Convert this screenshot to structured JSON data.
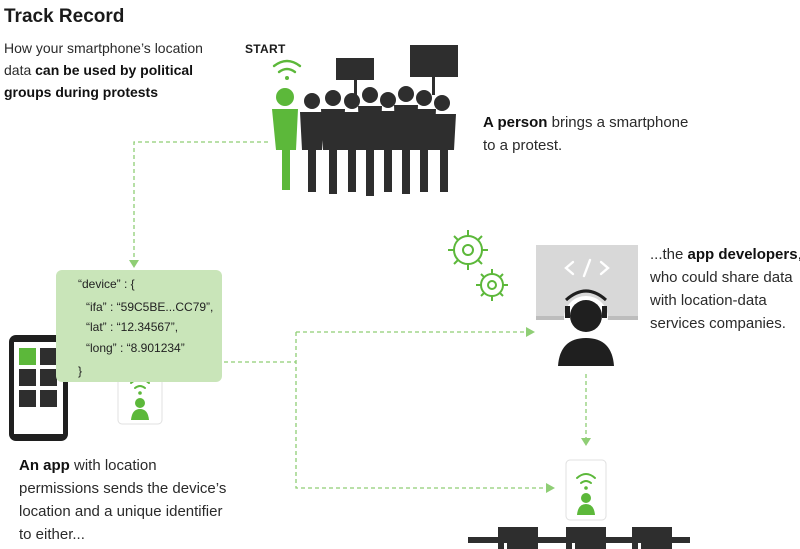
{
  "header": {
    "title": "Track Record",
    "subtitle_pre": "How your smartphone’s location data ",
    "subtitle_bold": "can be used by political groups during protests"
  },
  "start_label": "START",
  "steps": {
    "person": {
      "bold": "A person",
      "rest": " brings a smartphone to a protest."
    },
    "developers": {
      "pre": "...the ",
      "bold": "app developers",
      "rest": ", who could share data with location-data services companies."
    },
    "app": {
      "bold": "An app",
      "rest": " with location permissions sends the device’s location and a unique identifier to either..."
    }
  },
  "code": {
    "line1": "“device” : {",
    "line2": "“ifa” : “59C5BE...CC79”,",
    "line3": "“lat” : “12.34567”,",
    "line4": "“long” : “8.901234”",
    "line5": "}"
  },
  "colors": {
    "accent_green": "#5cb83a",
    "light_green": "#c9e5b9",
    "crowd_dark": "#2e2e2e",
    "connector": "#8fce75"
  },
  "icons": [
    "wifi-icon",
    "person-icon",
    "crowd-icon",
    "gear-icon",
    "code-icon",
    "developer-icon",
    "phone-icon",
    "server-icon"
  ]
}
